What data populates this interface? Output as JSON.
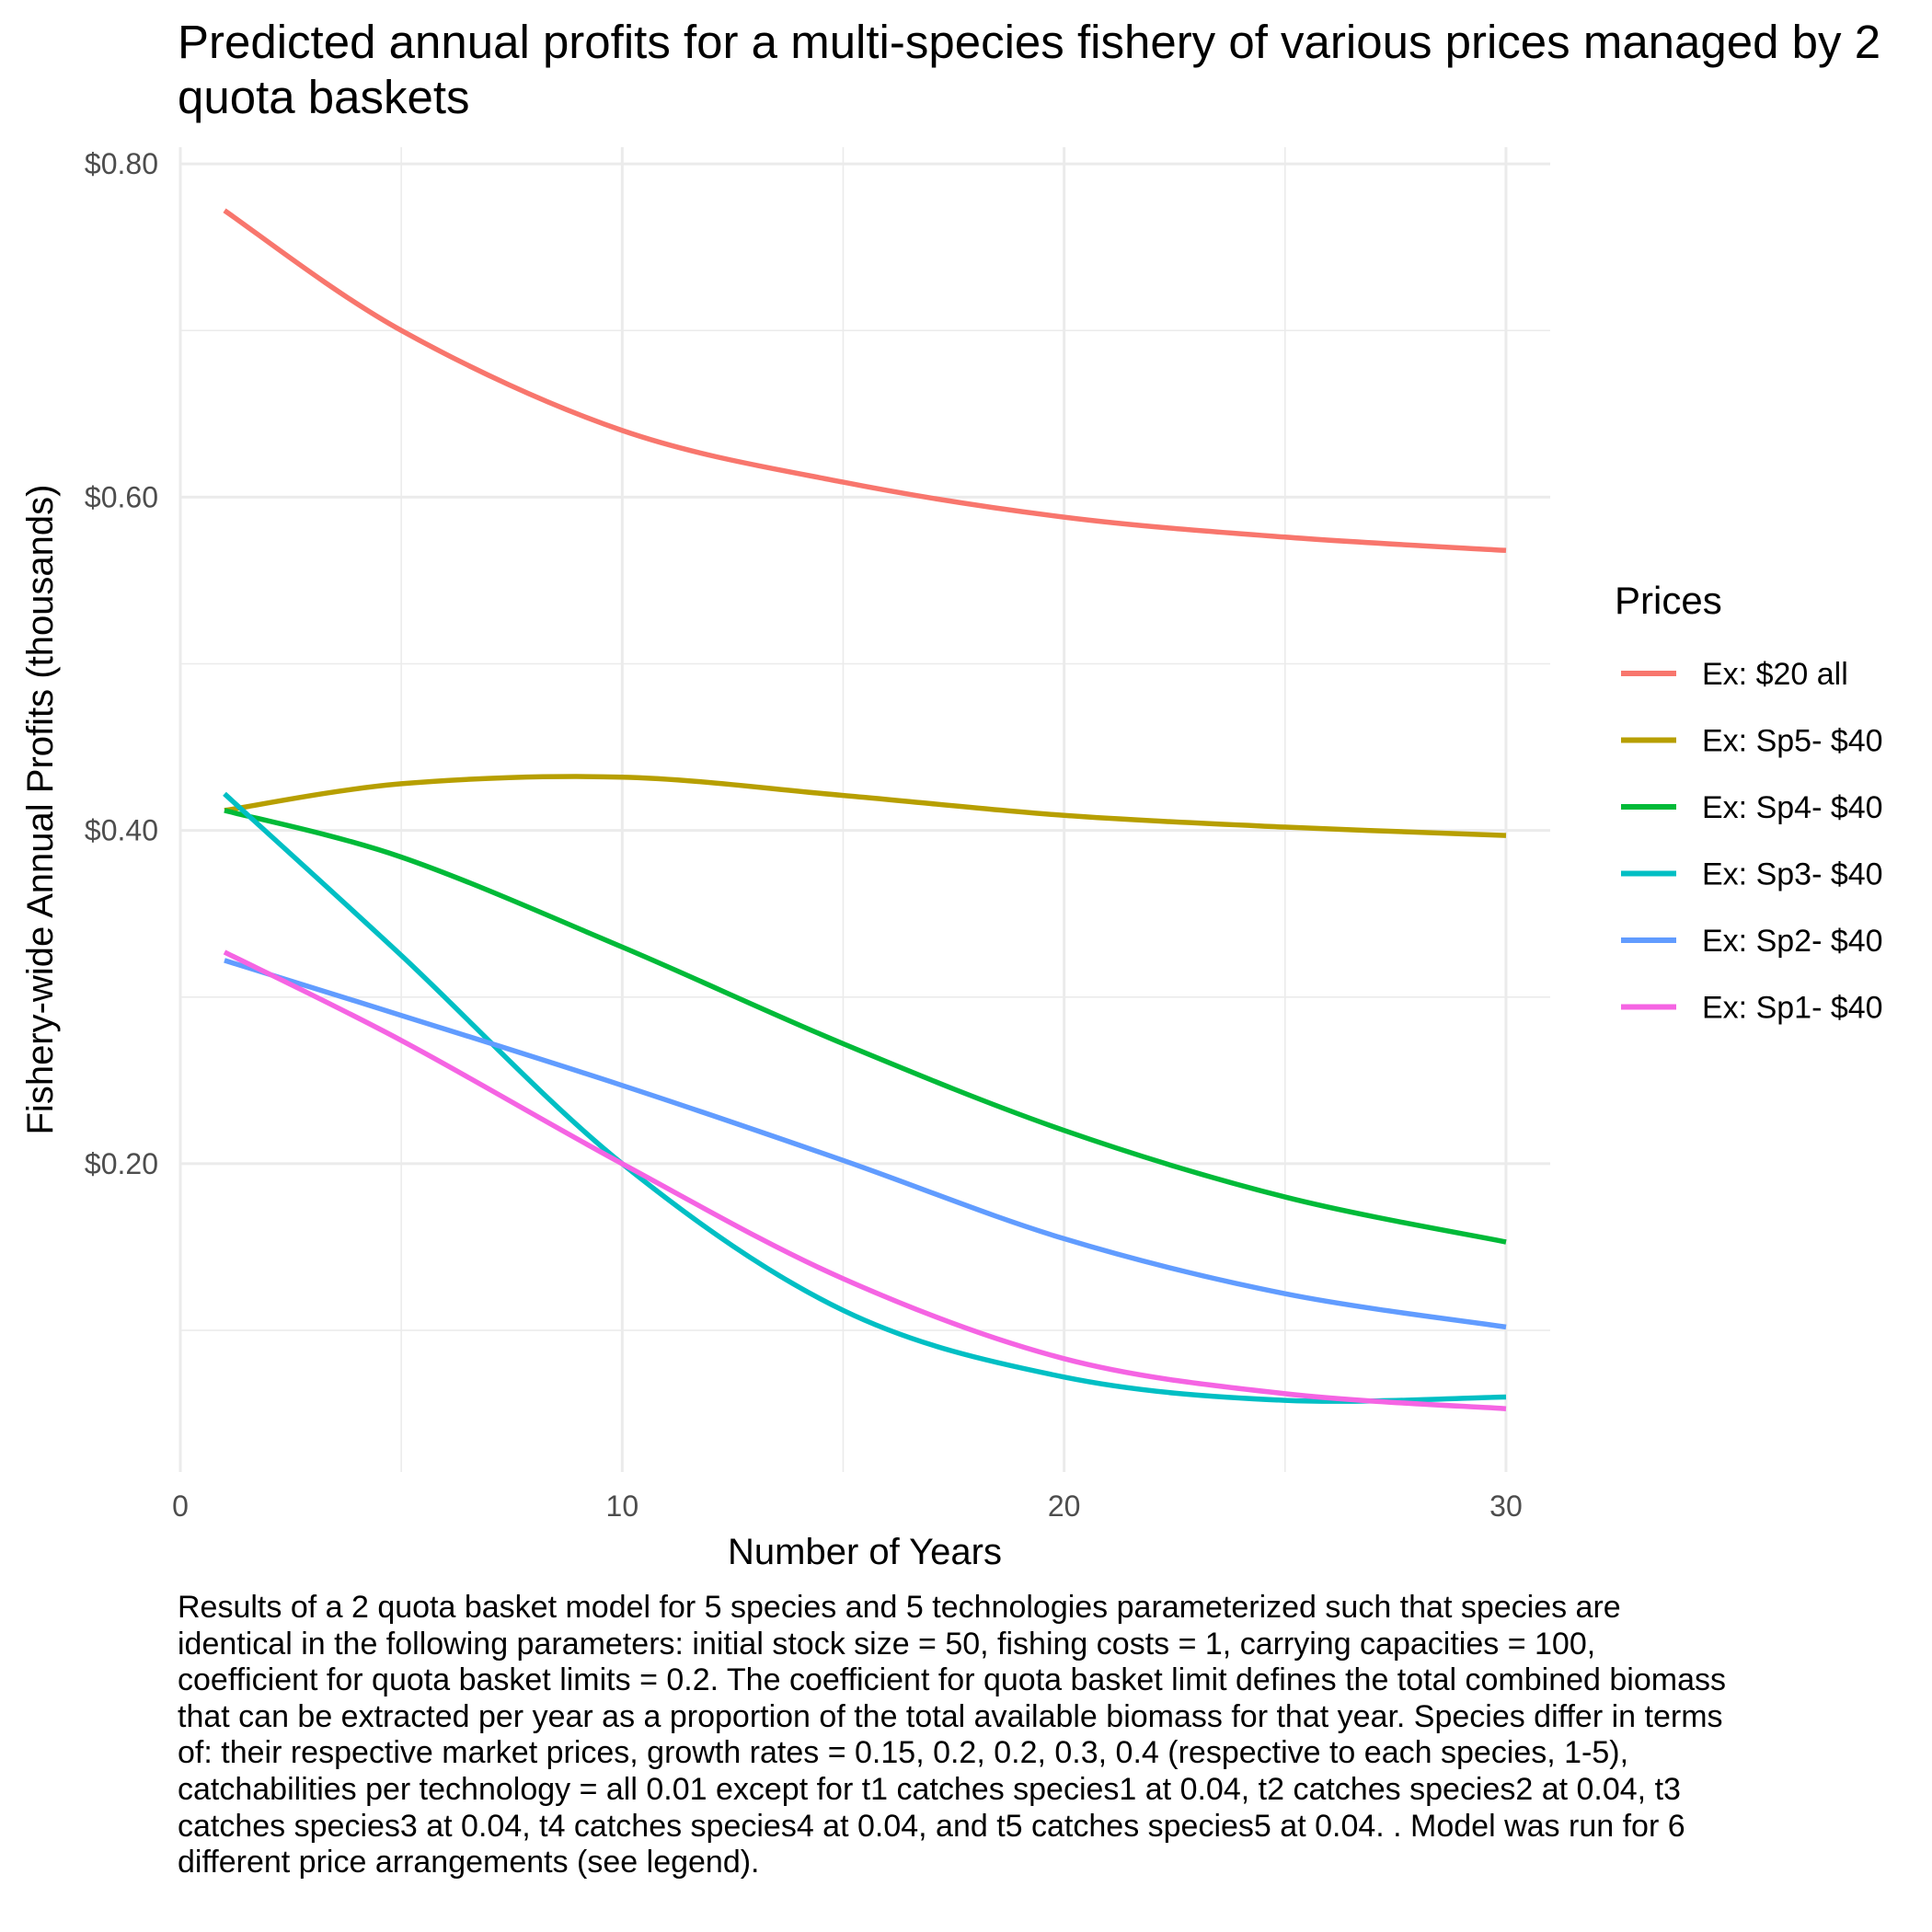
{
  "chart_data": {
    "type": "line",
    "title": "Predicted annual profits for a multi-species fishery of various prices managed by 2 quota baskets",
    "xlabel": "Number of Years",
    "ylabel": "Fishery-wide Annual Profits (thousands)",
    "xlim": [
      0,
      31
    ],
    "ylim": [
      0.015,
      0.81
    ],
    "x_ticks": [
      0,
      10,
      20,
      30
    ],
    "x_tick_labels": [
      "0",
      "10",
      "20",
      "30"
    ],
    "y_ticks": [
      0.2,
      0.4,
      0.6,
      0.8
    ],
    "y_tick_labels": [
      "$0.20",
      "$0.40",
      "$0.60",
      "$0.80"
    ],
    "grid": true,
    "legend": {
      "title": "Prices",
      "placement": "right"
    },
    "x": [
      1,
      5,
      10,
      15,
      20,
      25,
      30
    ],
    "series": [
      {
        "name": "Ex: $20 all",
        "color": "#F8766D",
        "values": [
          0.772,
          0.7,
          0.64,
          0.609,
          0.588,
          0.576,
          0.568
        ]
      },
      {
        "name": "Ex: Sp5- $40",
        "color": "#B79F00",
        "values": [
          0.412,
          0.428,
          0.432,
          0.421,
          0.409,
          0.402,
          0.397
        ]
      },
      {
        "name": "Ex: Sp4- $40",
        "color": "#00BA38",
        "values": [
          0.412,
          0.384,
          0.33,
          0.272,
          0.22,
          0.18,
          0.153
        ]
      },
      {
        "name": "Ex: Sp3- $40",
        "color": "#00BFC4",
        "values": [
          0.422,
          0.325,
          0.2,
          0.112,
          0.072,
          0.058,
          0.06
        ]
      },
      {
        "name": "Ex: Sp2- $40",
        "color": "#619CFF",
        "values": [
          0.322,
          0.289,
          0.247,
          0.202,
          0.155,
          0.122,
          0.102
        ]
      },
      {
        "name": "Ex: Sp1- $40",
        "color": "#F564E3",
        "values": [
          0.327,
          0.274,
          0.2,
          0.131,
          0.083,
          0.062,
          0.053
        ]
      }
    ]
  },
  "caption": "Results of a 2 quota basket model for 5 species and 5 technologies parameterized such that species are identical in the following parameters: initial stock size = 50, fishing costs = 1, carrying capacities = 100, coefficient for quota basket limits = 0.2. The coefficient for quota basket limit defines the total combined biomass that can be extracted per year as a proportion of the total available biomass for that year. Species differ in terms of: their respective market prices, growth rates = 0.15, 0.2, 0.2, 0.3, 0.4 (respective to each species, 1-5), catchabilities per technology = all 0.01 except for t1 catches species1 at 0.04, t2 catches species2 at 0.04, t3 catches species3 at 0.04, t4 catches species4 at 0.04, and t5 catches species5 at 0.04. . Model was run for 6 different price arrangements (see legend)."
}
